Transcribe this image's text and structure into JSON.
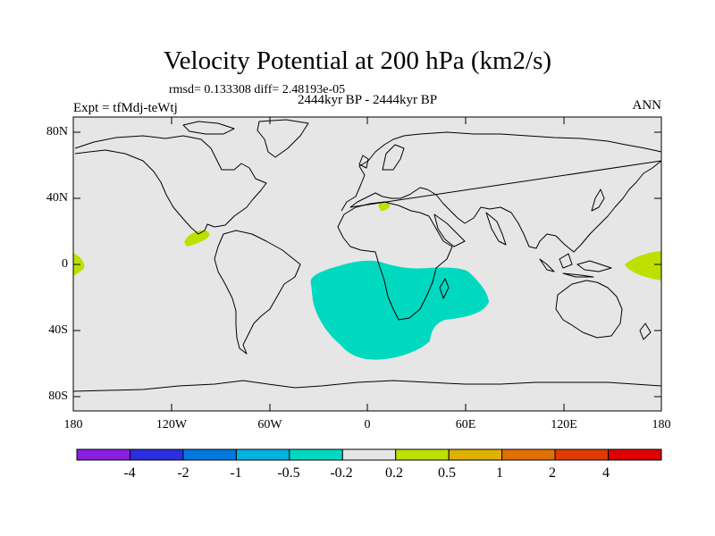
{
  "title": "Velocity Potential at 200 hPa (km2/s)",
  "stats": "rmsd= 0.133308 diff= 2.48193e-05",
  "experiment": "Expt = tfMdj-teWtj",
  "period": "2444kyr BP - 2444kyr BP",
  "season": "ANN",
  "map": {
    "background_color": "#e6e6e6",
    "lat_ticks": [
      "80N",
      "40N",
      "0",
      "40S",
      "80S"
    ],
    "lon_ticks": [
      "180",
      "120W",
      "60W",
      "0",
      "60E",
      "120E",
      "180"
    ],
    "anomalies": [
      {
        "name": "south-atlantic-africa-region",
        "level": "-0.5 to -0.2",
        "color": "#00d9c0"
      },
      {
        "name": "central-america-region",
        "level": "0.2 to 0.5",
        "color": "#bde000"
      },
      {
        "name": "mediterranean-region",
        "level": "0.2 to 0.5",
        "color": "#bde000"
      },
      {
        "name": "west-pacific-region",
        "level": "0.2 to 0.5",
        "color": "#bde000"
      },
      {
        "name": "east-pacific-edge-region",
        "level": "0.2 to 0.5",
        "color": "#bde000"
      }
    ]
  },
  "colorbar": {
    "colors": [
      "#8a1ee0",
      "#2a2ee0",
      "#0078e0",
      "#00b4e0",
      "#00d9c0",
      "#e6e6e6",
      "#bde000",
      "#e0b000",
      "#e07000",
      "#e03a00",
      "#e00000"
    ],
    "labels": [
      "-4",
      "-2",
      "-1",
      "-0.5",
      "-0.2",
      "0.2",
      "0.5",
      "1",
      "2",
      "4"
    ]
  }
}
